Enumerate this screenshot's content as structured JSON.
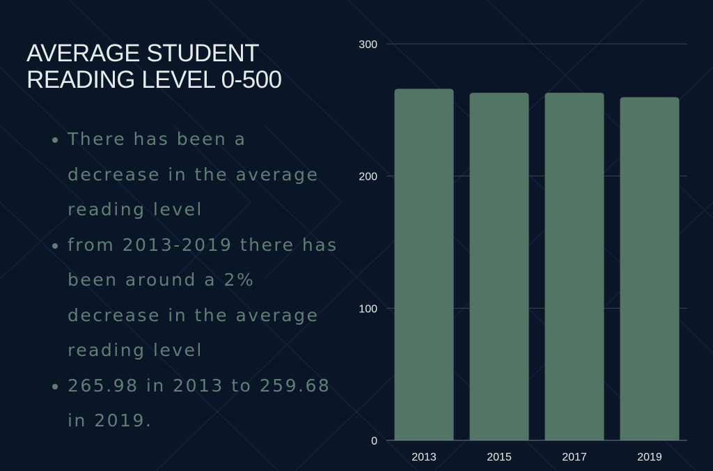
{
  "title_line1": "AVERAGE STUDENT",
  "title_line2": "READING LEVEL 0-500",
  "bullets": [
    "There has been a decrease in the average reading level",
    "from 2013-2019 there has been around a 2% decrease in the average reading level",
    "265.98 in 2013 to 259.68 in 2019."
  ],
  "colors": {
    "background": "#0a1628",
    "bar": "#527565",
    "grid": "#3a4656",
    "title": "#e6ece9",
    "bullet": "#5f7e74"
  },
  "chart_data": {
    "type": "bar",
    "title": "",
    "categories": [
      "2013",
      "2015",
      "2017",
      "2019"
    ],
    "values": [
      265.98,
      263,
      263,
      259.68
    ],
    "xlabel": "",
    "ylabel": "",
    "ylim": [
      0,
      300
    ],
    "yticks": [
      0,
      100,
      200,
      300
    ],
    "ytick_labels": [
      "0",
      "100",
      "200",
      "300"
    ],
    "grid": true,
    "legend": "none"
  }
}
